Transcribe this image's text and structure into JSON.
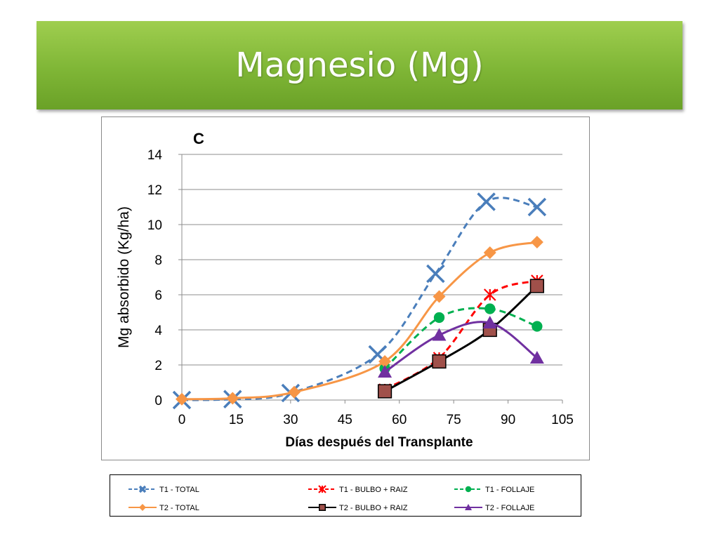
{
  "slide": {
    "title": "Magnesio (Mg)"
  },
  "chart_data": {
    "type": "line",
    "panel_label": "C",
    "xlabel": "Días después del Transplante",
    "ylabel": "Mg absorbido (Kg/ha)",
    "xlim": [
      0,
      105
    ],
    "ylim": [
      0,
      14
    ],
    "xticks": [
      0,
      15,
      30,
      45,
      60,
      75,
      90,
      105
    ],
    "yticks": [
      0,
      2,
      4,
      6,
      8,
      10,
      12,
      14
    ],
    "grid": true,
    "legend_position": "bottom",
    "series": [
      {
        "name": "T1 - TOTAL",
        "color": "#4a7ebb",
        "dash": true,
        "marker": "x",
        "x": [
          0,
          14,
          30,
          54,
          70,
          84,
          98
        ],
        "y": [
          0.0,
          0.05,
          0.4,
          2.6,
          7.2,
          11.3,
          11.0
        ]
      },
      {
        "name": "T1 - BULBO + RAIZ",
        "color": "#ff0000",
        "dash": true,
        "marker": "star",
        "x": [
          56,
          71,
          85,
          98
        ],
        "y": [
          0.6,
          2.4,
          6.0,
          6.8
        ]
      },
      {
        "name": "T1 - FOLLAJE",
        "color": "#00b050",
        "dash": true,
        "marker": "circle",
        "x": [
          56,
          71,
          85,
          98
        ],
        "y": [
          1.8,
          4.7,
          5.2,
          4.2
        ]
      },
      {
        "name": "T2 - TOTAL",
        "color": "#f79646",
        "dash": false,
        "marker": "diamond",
        "x": [
          0,
          14,
          31,
          56,
          71,
          85,
          98
        ],
        "y": [
          0.05,
          0.1,
          0.45,
          2.2,
          5.9,
          8.4,
          9.0
        ]
      },
      {
        "name": "T2 - BULBO + RAIZ",
        "color": "#000000",
        "dash": false,
        "marker": "square",
        "x": [
          56,
          71,
          85,
          98
        ],
        "y": [
          0.5,
          2.2,
          4.0,
          6.5
        ]
      },
      {
        "name": "T2 - FOLLAJE",
        "color": "#7030a0",
        "dash": false,
        "marker": "triangle",
        "x": [
          56,
          71,
          85,
          98
        ],
        "y": [
          1.6,
          3.7,
          4.4,
          2.4
        ]
      }
    ]
  }
}
